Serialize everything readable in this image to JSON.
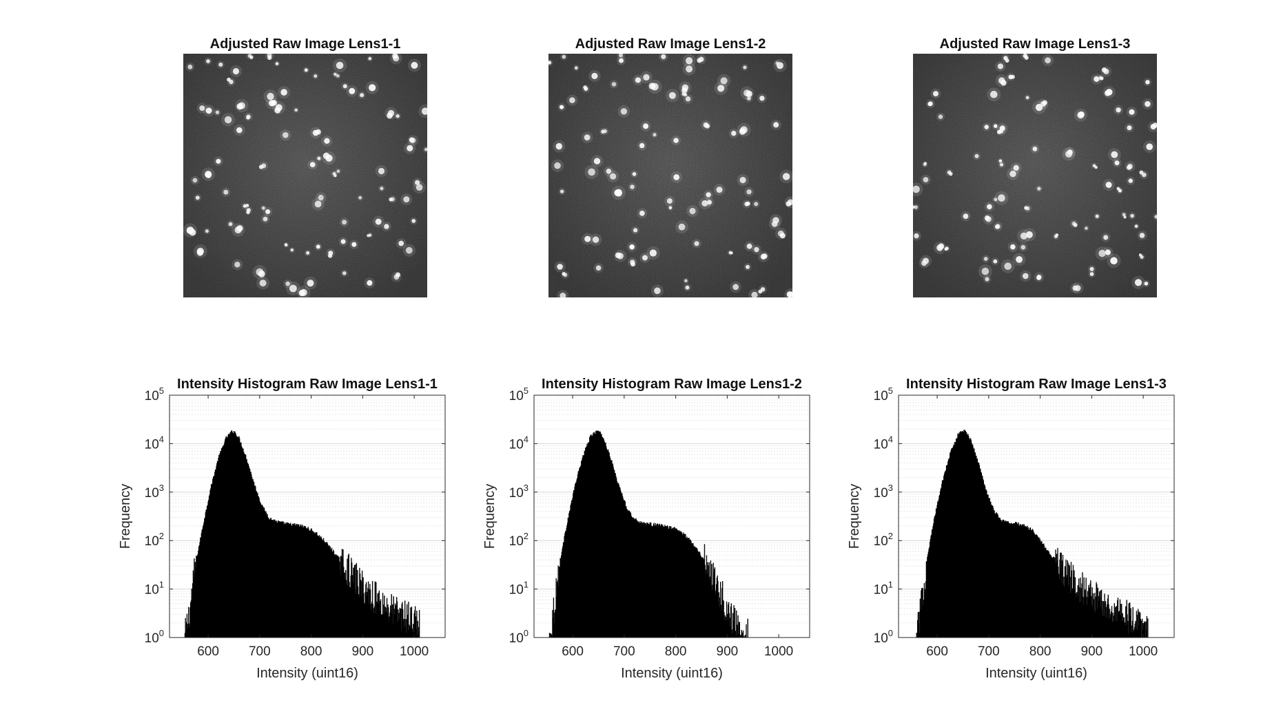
{
  "figure": {
    "images": [
      {
        "title": "Adjusted Raw Image Lens1-1",
        "seed": 11
      },
      {
        "title": "Adjusted Raw Image Lens1-2",
        "seed": 23
      },
      {
        "title": "Adjusted Raw Image Lens1-3",
        "seed": 37
      }
    ]
  },
  "chart_data": [
    {
      "type": "histogram",
      "title": "Intensity Histogram Raw Image Lens1-1",
      "xlabel": "Intensity (uint16)",
      "ylabel": "Frequency",
      "yscale": "log",
      "ylim": [
        1,
        100000
      ],
      "xlim": [
        525,
        1060
      ],
      "xticks": [
        600,
        700,
        800,
        900,
        1000
      ],
      "yticks": [
        1,
        10,
        100,
        1000,
        10000,
        100000
      ],
      "ytick_labels": [
        {
          "base": "10",
          "exp": "0"
        },
        {
          "base": "10",
          "exp": "1"
        },
        {
          "base": "10",
          "exp": "2"
        },
        {
          "base": "10",
          "exp": "3"
        },
        {
          "base": "10",
          "exp": "4"
        },
        {
          "base": "10",
          "exp": "5"
        }
      ],
      "grid": "log-minor",
      "bin_width": 1,
      "x": [
        555,
        565,
        575,
        590,
        605,
        620,
        635,
        645,
        650,
        660,
        675,
        690,
        705,
        720,
        735,
        750,
        765,
        780,
        795,
        810,
        825,
        840,
        855,
        870,
        885,
        900,
        915,
        930,
        945,
        960,
        975,
        990,
        1010
      ],
      "frequency": [
        1,
        4,
        30,
        200,
        1200,
        5000,
        13000,
        17000,
        18000,
        13000,
        4800,
        1400,
        500,
        280,
        240,
        220,
        210,
        200,
        175,
        140,
        100,
        65,
        40,
        26,
        17,
        11,
        8,
        6,
        4.5,
        3.5,
        3,
        2.5,
        2
      ]
    },
    {
      "type": "histogram",
      "title": "Intensity Histogram Raw Image Lens1-2",
      "xlabel": "Intensity (uint16)",
      "ylabel": "Frequency",
      "yscale": "log",
      "ylim": [
        1,
        100000
      ],
      "xlim": [
        525,
        1060
      ],
      "xticks": [
        600,
        700,
        800,
        900,
        1000
      ],
      "yticks": [
        1,
        10,
        100,
        1000,
        10000,
        100000
      ],
      "ytick_labels": [
        {
          "base": "10",
          "exp": "0"
        },
        {
          "base": "10",
          "exp": "1"
        },
        {
          "base": "10",
          "exp": "2"
        },
        {
          "base": "10",
          "exp": "3"
        },
        {
          "base": "10",
          "exp": "4"
        },
        {
          "base": "10",
          "exp": "5"
        }
      ],
      "grid": "log-minor",
      "bin_width": 1,
      "x": [
        555,
        565,
        575,
        590,
        605,
        620,
        635,
        645,
        650,
        660,
        675,
        690,
        705,
        720,
        735,
        750,
        765,
        780,
        795,
        810,
        825,
        840,
        855,
        870,
        885,
        895,
        905,
        915,
        925,
        940
      ],
      "frequency": [
        1,
        5,
        35,
        250,
        1400,
        5500,
        14000,
        17500,
        18000,
        13000,
        4500,
        1300,
        480,
        270,
        230,
        215,
        205,
        195,
        180,
        150,
        110,
        70,
        40,
        22,
        10,
        5,
        3,
        2,
        1.5,
        1.5
      ]
    },
    {
      "type": "histogram",
      "title": "Intensity Histogram Raw Image Lens1-3",
      "xlabel": "Intensity (uint16)",
      "ylabel": "Frequency",
      "yscale": "log",
      "ylim": [
        1,
        100000
      ],
      "xlim": [
        525,
        1060
      ],
      "xticks": [
        600,
        700,
        800,
        900,
        1000
      ],
      "yticks": [
        1,
        10,
        100,
        1000,
        10000,
        100000
      ],
      "ytick_labels": [
        {
          "base": "10",
          "exp": "0"
        },
        {
          "base": "10",
          "exp": "1"
        },
        {
          "base": "10",
          "exp": "2"
        },
        {
          "base": "10",
          "exp": "3"
        },
        {
          "base": "10",
          "exp": "4"
        },
        {
          "base": "10",
          "exp": "5"
        }
      ],
      "grid": "log-minor",
      "bin_width": 1,
      "x": [
        560,
        570,
        580,
        595,
        610,
        625,
        640,
        648,
        655,
        665,
        680,
        695,
        710,
        725,
        740,
        755,
        770,
        785,
        800,
        815,
        830,
        845,
        860,
        875,
        890,
        905,
        920,
        935,
        950,
        965,
        980,
        1010
      ],
      "frequency": [
        1,
        5,
        40,
        300,
        1600,
        6000,
        15000,
        18000,
        17500,
        12000,
        4000,
        1100,
        420,
        260,
        230,
        220,
        200,
        160,
        100,
        60,
        38,
        25,
        17,
        12,
        9,
        7,
        5.5,
        4.5,
        3.5,
        3,
        2,
        1.5
      ]
    }
  ]
}
